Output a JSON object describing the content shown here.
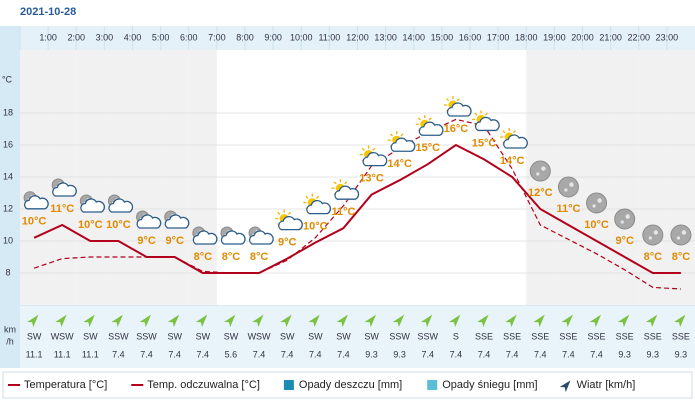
{
  "chart_data": {
    "type": "line",
    "title": "2021-10-28",
    "y_label": "°C",
    "ylim": [
      6,
      21.94
    ],
    "yticks": [
      8,
      10,
      12,
      14,
      16,
      18
    ],
    "grid": true,
    "hour_labels": [
      "1:00",
      "2:00",
      "3:00",
      "4:00",
      "5:00",
      "6:00",
      "7:00",
      "8:00",
      "9:00",
      "10:00",
      "11:00",
      "12:00",
      "13:00",
      "14:00",
      "15:00",
      "16:00",
      "17:00",
      "18:00",
      "19:00",
      "20:00",
      "21:00",
      "22:00",
      "23:00"
    ],
    "series": [
      {
        "name": "Temperatura [°C]",
        "color": "#b3001b",
        "style": "solid",
        "values": [
          10.2,
          11,
          10,
          10,
          9,
          9,
          8,
          8,
          8,
          8.9,
          9.9,
          10.8,
          12.9,
          13.8,
          14.8,
          16,
          15.1,
          14,
          12,
          11,
          10,
          9,
          8,
          8
        ],
        "value_labels": [
          "10°C",
          "11°C",
          "10°C",
          "10°C",
          "9°C",
          "9°C",
          "8°C",
          "8°C",
          "8°C",
          "9°C",
          "10°C",
          "11°C",
          "13°C",
          "14°C",
          "15°C",
          "16°C",
          "15°C",
          "14°C",
          "12°C",
          "11°C",
          "10°C",
          "9°C",
          "8°C",
          "8°C"
        ]
      },
      {
        "name": "Temp. odczuwalna [°C]",
        "color": "#b3001b",
        "style": "dashed",
        "values": [
          8.3,
          8.9,
          9,
          9,
          9,
          9,
          8.1,
          8,
          8,
          8.8,
          10.2,
          12.2,
          14.7,
          15.8,
          16.8,
          17.6,
          17.2,
          14.5,
          11,
          10.1,
          9.2,
          8.2,
          7.1,
          7
        ]
      }
    ],
    "legend_extra": [
      {
        "name": "Opady deszczu [mm]",
        "color": "#1b8db5"
      },
      {
        "name": "Opady śniegu [mm]",
        "color": "#5bbdd6"
      }
    ],
    "wind": {
      "legend": "Wiatr [km/h]",
      "unit_lines": [
        "km",
        "/h"
      ],
      "directions": [
        "SW",
        "WSW",
        "SW",
        "SSW",
        "SSW",
        "SW",
        "SW",
        "SW",
        "WSW",
        "SW",
        "SW",
        "SW",
        "SW",
        "SSW",
        "SSW",
        "S",
        "SSE",
        "SSE",
        "SSE",
        "SSE",
        "SSE",
        "SSE",
        "SSE",
        "SSE"
      ],
      "speeds": [
        11.1,
        11.1,
        11.1,
        7.4,
        7.4,
        7.4,
        7.4,
        5.6,
        7.4,
        7.4,
        7.4,
        7.4,
        9.3,
        9.3,
        7.4,
        7.4,
        7.4,
        7.4,
        7.4,
        7.4,
        7.4,
        9.3,
        9.3,
        9.3
      ]
    }
  }
}
